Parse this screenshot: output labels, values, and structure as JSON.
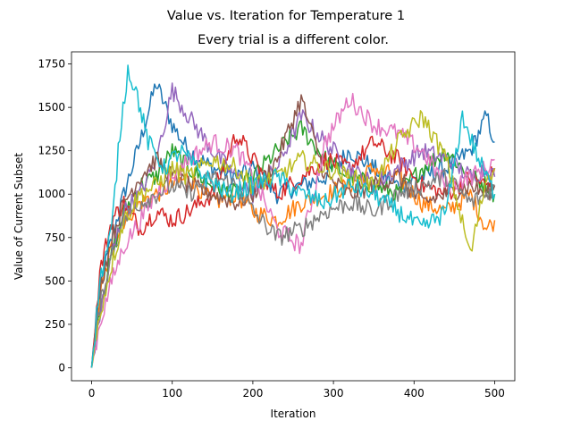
{
  "chart_data": {
    "type": "line",
    "title": "Value vs. Iteration for Temperature 1",
    "subtitle": "Every trial is a different color.",
    "xlabel": "Iteration",
    "ylabel": "Value of Current Subset",
    "xlim": [
      -25,
      525
    ],
    "ylim": [
      -75,
      1820
    ],
    "xticks": [
      0,
      100,
      200,
      300,
      400,
      500
    ],
    "yticks": [
      0,
      250,
      500,
      750,
      1000,
      1250,
      1500,
      1750
    ],
    "grid": false,
    "legend": "none",
    "series": [
      {
        "color": "#1f77b4",
        "x": [
          0,
          10,
          25,
          40,
          60,
          80,
          100,
          120,
          150,
          180,
          200,
          230,
          260,
          290,
          320,
          350,
          380,
          410,
          440,
          470,
          490,
          500
        ],
        "y": [
          0,
          450,
          750,
          1000,
          1300,
          1640,
          1400,
          1250,
          1150,
          1100,
          1150,
          1000,
          1050,
          1100,
          1250,
          1150,
          1050,
          1100,
          1150,
          1250,
          1450,
          1300
        ]
      },
      {
        "color": "#ff7f0e",
        "x": [
          0,
          10,
          25,
          40,
          60,
          80,
          100,
          120,
          150,
          180,
          200,
          230,
          260,
          290,
          320,
          350,
          380,
          410,
          440,
          470,
          490,
          500
        ],
        "y": [
          0,
          400,
          700,
          850,
          950,
          1000,
          1050,
          1100,
          950,
          1000,
          900,
          850,
          950,
          1000,
          1050,
          1150,
          1100,
          950,
          900,
          1000,
          800,
          850
        ]
      },
      {
        "color": "#2ca02c",
        "x": [
          0,
          10,
          25,
          40,
          60,
          80,
          100,
          120,
          150,
          180,
          200,
          230,
          260,
          290,
          320,
          350,
          380,
          410,
          440,
          470,
          490,
          500
        ],
        "y": [
          0,
          350,
          650,
          900,
          1050,
          1100,
          1250,
          1150,
          1050,
          1000,
          1100,
          1250,
          1380,
          1200,
          1100,
          1050,
          1000,
          1150,
          1250,
          1100,
          1050,
          1000
        ]
      },
      {
        "color": "#d62728",
        "x": [
          0,
          10,
          25,
          40,
          60,
          80,
          100,
          120,
          150,
          180,
          200,
          230,
          260,
          290,
          320,
          350,
          380,
          410,
          440,
          470,
          490,
          500
        ],
        "y": [
          0,
          550,
          850,
          950,
          800,
          900,
          850,
          900,
          1000,
          1350,
          1200,
          1000,
          1100,
          1200,
          1150,
          1300,
          1200,
          1050,
          1000,
          1100,
          1050,
          1150
        ]
      },
      {
        "color": "#9467bd",
        "x": [
          0,
          10,
          25,
          40,
          60,
          80,
          100,
          120,
          150,
          180,
          200,
          230,
          260,
          290,
          320,
          350,
          380,
          410,
          440,
          470,
          490,
          500
        ],
        "y": [
          0,
          300,
          650,
          900,
          1000,
          1200,
          1600,
          1450,
          1250,
          1100,
          1000,
          1150,
          1450,
          1300,
          1150,
          1050,
          1150,
          1250,
          1200,
          1100,
          1150,
          1100
        ]
      },
      {
        "color": "#8c564b",
        "x": [
          0,
          10,
          25,
          40,
          60,
          80,
          100,
          120,
          150,
          180,
          200,
          230,
          260,
          290,
          320,
          350,
          380,
          410,
          440,
          470,
          490,
          500
        ],
        "y": [
          0,
          450,
          750,
          950,
          1100,
          1200,
          1100,
          1050,
          1000,
          950,
          1000,
          1200,
          1550,
          1100,
          1000,
          1050,
          1100,
          950,
          1000,
          1050,
          1000,
          1050
        ]
      },
      {
        "color": "#e377c2",
        "x": [
          0,
          10,
          25,
          40,
          60,
          80,
          100,
          120,
          150,
          180,
          200,
          230,
          260,
          290,
          320,
          350,
          380,
          410,
          440,
          470,
          490,
          500
        ],
        "y": [
          0,
          250,
          500,
          700,
          850,
          1000,
          1100,
          1200,
          1300,
          1250,
          1100,
          800,
          700,
          1300,
          1550,
          1400,
          1350,
          1250,
          1050,
          1100,
          1150,
          1200
        ]
      },
      {
        "color": "#7f7f7f",
        "x": [
          0,
          10,
          25,
          40,
          60,
          80,
          100,
          120,
          150,
          180,
          200,
          230,
          260,
          290,
          320,
          350,
          380,
          410,
          440,
          470,
          490,
          500
        ],
        "y": [
          0,
          350,
          650,
          850,
          950,
          1000,
          1050,
          1000,
          1100,
          1050,
          900,
          750,
          800,
          900,
          950,
          900,
          1000,
          1050,
          1100,
          950,
          1000,
          1050
        ]
      },
      {
        "color": "#bcbd22",
        "x": [
          0,
          10,
          25,
          40,
          60,
          80,
          100,
          120,
          150,
          180,
          200,
          230,
          260,
          290,
          320,
          350,
          380,
          410,
          440,
          470,
          490,
          500
        ],
        "y": [
          0,
          300,
          600,
          850,
          1000,
          1050,
          1150,
          1100,
          1200,
          1150,
          1050,
          1100,
          1200,
          1150,
          1100,
          1050,
          1300,
          1450,
          1200,
          650,
          1100,
          1150
        ]
      },
      {
        "color": "#17becf",
        "x": [
          0,
          10,
          25,
          35,
          45,
          55,
          70,
          90,
          110,
          140,
          170,
          200,
          230,
          260,
          290,
          320,
          350,
          380,
          410,
          440,
          460,
          480,
          500
        ],
        "y": [
          0,
          500,
          800,
          1350,
          1720,
          1600,
          1300,
          1150,
          1250,
          1100,
          1000,
          1050,
          1100,
          1000,
          950,
          1050,
          1000,
          900,
          800,
          900,
          1450,
          1200,
          1000
        ]
      }
    ]
  }
}
